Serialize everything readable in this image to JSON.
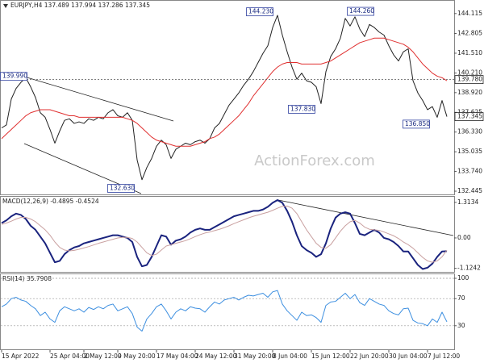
{
  "chart_data": [
    {
      "type": "line",
      "title": "EURJPY,H4 137.489 137.994 137.286 137.345",
      "watermark": "ActionForex.com",
      "ylim": [
        132.34,
        144.9
      ],
      "yticks": [
        144.115,
        142.805,
        {
          "value": 141.51,
          "label": "141.510"
        },
        {
          "value": 140.21,
          "label": "140.210"
        },
        {
          "value": 138.92,
          "label": "138.920"
        },
        137.625,
        {
          "value": 136.33,
          "label": "136.330"
        },
        135.035,
        {
          "value": 133.74,
          "label": "133.740"
        },
        132.445
      ],
      "levels": [
        {
          "value": 139.78,
          "label": "139.780"
        },
        137.345
      ],
      "annotations": [
        {
          "value": 139.99,
          "label": "139.990"
        },
        {
          "value": 144.23,
          "label": "144.230"
        },
        {
          "value": 144.26,
          "label": "144.260"
        },
        {
          "value": 137.83,
          "label": "137.830"
        },
        {
          "value": 136.85,
          "label": "136.850"
        },
        {
          "value": 132.63,
          "label": "132.630"
        }
      ],
      "series": [
        {
          "color": "#222222",
          "values": [
            136.6,
            136.8,
            138.5,
            139.2,
            139.6,
            139.9,
            139.3,
            138.6,
            137.6,
            137.3,
            136.5,
            135.6,
            136.4,
            137.1,
            137.2,
            136.9,
            137.0,
            136.9,
            137.2,
            137.1,
            137.3,
            137.2,
            137.6,
            137.8,
            137.4,
            137.3,
            137.6,
            137.1,
            134.5,
            133.2,
            134.0,
            134.6,
            135.4,
            135.8,
            135.5,
            134.6,
            135.2,
            135.4,
            135.6,
            135.5,
            135.7,
            135.8,
            135.6,
            135.9,
            136.6,
            136.9,
            137.5,
            138.1,
            138.5,
            138.9,
            139.4,
            139.8,
            140.3,
            140.9,
            141.5,
            142.0,
            143.2,
            144.0,
            142.7,
            141.6,
            140.6,
            139.8,
            140.2,
            139.7,
            139.6,
            139.3,
            138.2,
            140.3,
            141.3,
            141.8,
            142.5,
            143.8,
            143.3,
            143.9,
            143.1,
            142.6,
            143.4,
            143.2,
            142.9,
            142.7,
            142.0,
            141.4,
            141.0,
            141.6,
            141.8,
            139.7,
            138.9,
            138.4,
            137.8,
            138.0,
            137.3,
            138.4,
            137.345
          ]
        },
        {
          "color": "#e03030",
          "values": [
            135.9,
            136.2,
            136.5,
            136.8,
            137.1,
            137.4,
            137.6,
            137.7,
            137.8,
            137.8,
            137.8,
            137.7,
            137.6,
            137.5,
            137.4,
            137.4,
            137.3,
            137.3,
            137.3,
            137.3,
            137.3,
            137.3,
            137.3,
            137.3,
            137.3,
            137.3,
            137.2,
            137.1,
            136.9,
            136.6,
            136.3,
            136.0,
            135.8,
            135.7,
            135.6,
            135.5,
            135.4,
            135.4,
            135.4,
            135.4,
            135.5,
            135.6,
            135.7,
            135.9,
            136.0,
            136.2,
            136.5,
            136.8,
            137.1,
            137.4,
            137.8,
            138.2,
            138.7,
            139.1,
            139.5,
            139.9,
            140.3,
            140.6,
            140.8,
            140.9,
            140.9,
            140.9,
            140.8,
            140.8,
            140.8,
            140.8,
            140.8,
            140.9,
            141.0,
            141.2,
            141.4,
            141.6,
            141.8,
            142.0,
            142.2,
            142.3,
            142.4,
            142.5,
            142.5,
            142.5,
            142.4,
            142.3,
            142.2,
            142.1,
            141.9,
            141.6,
            141.2,
            140.8,
            140.5,
            140.2,
            140.0,
            139.9,
            139.7
          ]
        }
      ]
    },
    {
      "type": "line",
      "title": "MACD(12,26,9) -0.4895 -0.4524",
      "ylim": [
        -1.254,
        1.49
      ],
      "yticks": [
        1.3134,
        {
          "value": 0,
          "label": "0.00"
        },
        -1.1242
      ],
      "series": [
        {
          "color": "#1a237e",
          "width": 2,
          "values": [
            0.55,
            0.65,
            0.8,
            0.9,
            0.85,
            0.7,
            0.45,
            0.3,
            0.05,
            -0.2,
            -0.55,
            -0.9,
            -0.85,
            -0.6,
            -0.45,
            -0.35,
            -0.3,
            -0.2,
            -0.15,
            -0.1,
            -0.05,
            0.0,
            0.05,
            0.1,
            0.1,
            0.05,
            0.0,
            -0.15,
            -0.7,
            -1.05,
            -1.0,
            -0.7,
            -0.3,
            0.1,
            0.05,
            -0.25,
            -0.1,
            -0.05,
            0.05,
            0.2,
            0.3,
            0.35,
            0.3,
            0.3,
            0.4,
            0.5,
            0.6,
            0.7,
            0.8,
            0.85,
            0.9,
            0.95,
            1.0,
            1.0,
            1.05,
            1.15,
            1.3,
            1.4,
            1.3,
            1.0,
            0.6,
            0.1,
            -0.3,
            -0.45,
            -0.55,
            -0.7,
            -0.6,
            -0.2,
            0.35,
            0.75,
            0.9,
            0.95,
            0.9,
            0.55,
            0.15,
            0.1,
            0.2,
            0.3,
            0.2,
            0.0,
            -0.05,
            -0.15,
            -0.3,
            -0.5,
            -0.5,
            -0.75,
            -1.0,
            -1.15,
            -1.1,
            -0.95,
            -0.7,
            -0.5,
            -0.4895
          ]
        },
        {
          "color": "#c9a0a0",
          "width": 1,
          "values": [
            0.5,
            0.55,
            0.62,
            0.7,
            0.76,
            0.76,
            0.7,
            0.6,
            0.45,
            0.3,
            0.1,
            -0.15,
            -0.35,
            -0.45,
            -0.48,
            -0.46,
            -0.42,
            -0.37,
            -0.32,
            -0.26,
            -0.2,
            -0.15,
            -0.1,
            -0.05,
            0.0,
            0.02,
            0.02,
            -0.02,
            -0.15,
            -0.35,
            -0.55,
            -0.65,
            -0.6,
            -0.45,
            -0.3,
            -0.25,
            -0.2,
            -0.15,
            -0.1,
            -0.03,
            0.05,
            0.12,
            0.18,
            0.22,
            0.27,
            0.32,
            0.38,
            0.45,
            0.53,
            0.6,
            0.67,
            0.74,
            0.8,
            0.85,
            0.9,
            0.95,
            1.02,
            1.1,
            1.17,
            1.18,
            1.1,
            0.9,
            0.6,
            0.3,
            0.05,
            -0.2,
            -0.35,
            -0.38,
            -0.25,
            0.0,
            0.25,
            0.45,
            0.6,
            0.65,
            0.55,
            0.4,
            0.32,
            0.3,
            0.28,
            0.22,
            0.15,
            0.08,
            -0.02,
            -0.15,
            -0.25,
            -0.38,
            -0.55,
            -0.72,
            -0.85,
            -0.9,
            -0.85,
            -0.7,
            -0.4524
          ]
        }
      ]
    },
    {
      "type": "line",
      "title": "RSI(14) 35.7908",
      "ylim": [
        0,
        100
      ],
      "yticks": [
        100,
        70,
        30
      ],
      "grid": true,
      "categories": [
        "15 Apr 2022",
        null,
        null,
        null,
        null,
        null,
        null,
        null,
        null,
        null,
        "25 Apr 04:00",
        null,
        null,
        null,
        null,
        null,
        null,
        "2 May 12:00",
        null,
        null,
        null,
        null,
        null,
        null,
        "9 May 20:00",
        null,
        null,
        null,
        null,
        null,
        null,
        null,
        "17 May 04:00",
        null,
        null,
        null,
        null,
        null,
        null,
        null,
        "24 May 12:00",
        null,
        null,
        null,
        null,
        null,
        null,
        null,
        "31 May 20:00",
        null,
        null,
        null,
        null,
        null,
        null,
        null,
        "8 Jun 04:00",
        null,
        null,
        null,
        null,
        null,
        null,
        null,
        "15 Jun 12:00",
        null,
        null,
        null,
        null,
        null,
        null,
        null,
        "22 Jun 20:00",
        null,
        null,
        null,
        null,
        null,
        null,
        null,
        "30 Jun 04:00",
        null,
        null,
        null,
        null,
        null,
        null,
        null,
        "7 Jul 12:00",
        null,
        null,
        null,
        null
      ],
      "series": [
        {
          "color": "#3d8fe0",
          "values": [
            58,
            62,
            70,
            72,
            68,
            66,
            60,
            55,
            45,
            50,
            40,
            35,
            52,
            58,
            55,
            52,
            55,
            50,
            57,
            54,
            58,
            55,
            60,
            62,
            52,
            55,
            58,
            48,
            28,
            22,
            40,
            48,
            58,
            62,
            52,
            40,
            50,
            55,
            52,
            58,
            56,
            55,
            50,
            58,
            65,
            62,
            68,
            70,
            72,
            68,
            72,
            75,
            74,
            76,
            78,
            72,
            80,
            82,
            62,
            52,
            45,
            38,
            50,
            45,
            46,
            42,
            35,
            60,
            65,
            66,
            72,
            78,
            70,
            76,
            64,
            60,
            70,
            66,
            62,
            60,
            52,
            48,
            46,
            55,
            56,
            38,
            34,
            33,
            30,
            40,
            35,
            50,
            35.7908
          ]
        }
      ]
    }
  ]
}
